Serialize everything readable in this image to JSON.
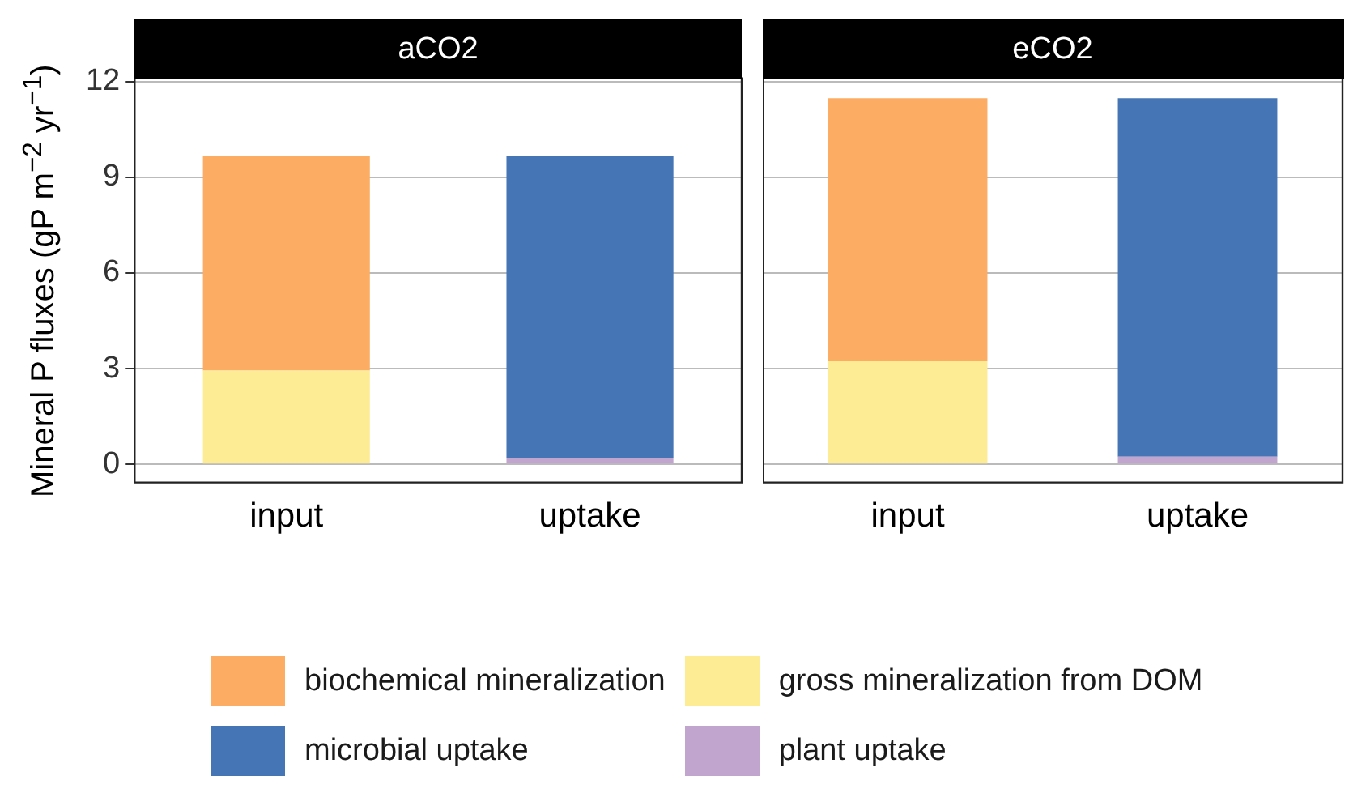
{
  "chart_data": [
    {
      "type": "bar",
      "title": "aCO2",
      "ylabel": "Mineral P fluxes (gP m$^{−2}$ yr$^{−1}$)",
      "categories": [
        "input",
        "uptake"
      ],
      "stacked": true,
      "ylim": [
        -0.57,
        12.05
      ],
      "yticks": [
        0,
        3,
        6,
        9,
        12
      ],
      "grid": "y",
      "legend": "bottom",
      "series": [
        {
          "name": "gross mineralization from DOM",
          "color": "#fdec93",
          "values": [
            2.94,
            null
          ]
        },
        {
          "name": "plant uptake",
          "color": "#c2a5cf",
          "values": [
            null,
            0.19
          ]
        },
        {
          "name": "biochemical mineralization",
          "color": "#fdac63",
          "values": [
            6.74,
            null
          ]
        },
        {
          "name": "microbial uptake",
          "color": "#4575b4",
          "values": [
            null,
            9.49
          ]
        }
      ]
    },
    {
      "type": "bar",
      "title": "eCO2",
      "categories": [
        "input",
        "uptake"
      ],
      "stacked": true,
      "ylim": [
        -0.57,
        12.05
      ],
      "yticks": [
        0,
        3,
        6,
        9,
        12
      ],
      "grid": "y",
      "tick_labels": "x",
      "series": [
        {
          "color": "#fdec93",
          "values": [
            3.23,
            null
          ]
        },
        {
          "color": "#c2a5cf",
          "values": [
            null,
            0.24
          ]
        },
        {
          "color": "#fdac63",
          "values": [
            8.25,
            null
          ]
        },
        {
          "color": "#4575b4",
          "values": [
            null,
            11.24
          ]
        }
      ]
    }
  ]
}
